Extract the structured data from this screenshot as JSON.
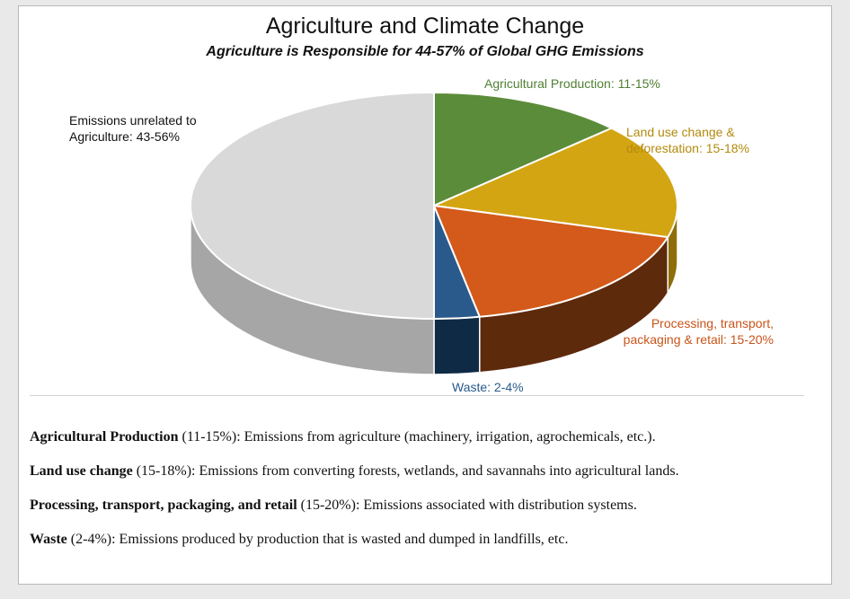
{
  "chart_data": {
    "type": "pie",
    "title": "Agriculture and Climate Change",
    "subtitle": "Agriculture is Responsible for 44-57% of Global GHG Emissions",
    "slices": [
      {
        "label": "Agricultural Production: 11-15%",
        "value": 13,
        "color": "#5b8c3a",
        "side": "#3d6326"
      },
      {
        "label": "Land use change & deforestation: 15-18%",
        "value": 16.5,
        "color": "#d4a513",
        "side": "#8f6e0a"
      },
      {
        "label": "Processing, transport, packaging & retail: 15-20%",
        "value": 17.5,
        "color": "#d35a1a",
        "side": "#5e2a0c"
      },
      {
        "label": "Waste: 2-4%",
        "value": 3,
        "color": "#2a5a8c",
        "side": "#0f2a44"
      },
      {
        "label": "Emissions unrelated to Agriculture: 43-56%",
        "value": 50,
        "color": "#d9d9d9",
        "side": "#a6a6a6"
      }
    ],
    "label_colors": [
      "#4f7f31",
      "#b38a0c",
      "#c8541a",
      "#2a5a8c",
      "#111111"
    ],
    "labels_display": [
      [
        "Agricultural Production: 11-15%"
      ],
      [
        "Land use change &",
        "deforestation: 15-18%"
      ],
      [
        "Processing, transport,",
        "packaging & retail: 15-20%"
      ],
      [
        "Waste: 2-4%"
      ],
      [
        "Emissions unrelated to",
        "Agriculture: 43-56%"
      ]
    ]
  },
  "notes": [
    {
      "term": "Agricultural Production",
      "text": " (11-15%): Emissions from agriculture (machinery, irrigation, agrochemicals, etc.)."
    },
    {
      "term": "Land use change",
      "text": " (15-18%): Emissions from converting forests, wetlands, and savannahs into agricultural lands."
    },
    {
      "term": "Processing, transport, packaging, and retail",
      "text": " (15-20%): Emissions associated with distribution systems."
    },
    {
      "term": "Waste",
      "text": " (2-4%): Emissions produced by production that is wasted and dumped in landfills, etc."
    }
  ]
}
